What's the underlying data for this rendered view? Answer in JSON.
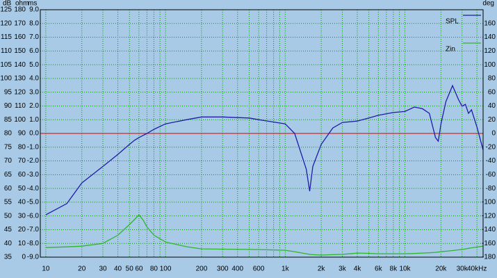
{
  "chart_data": {
    "type": "line",
    "x_log": true,
    "xlim": [
      9,
      45000
    ],
    "xticks": [
      10,
      20,
      30,
      40,
      50,
      60,
      80,
      100,
      200,
      300,
      400,
      600,
      {
        "value": 1000,
        "label": "1k"
      },
      {
        "value": 2000,
        "label": "2k"
      },
      {
        "value": 3000,
        "label": "3k"
      },
      {
        "value": 4000,
        "label": "4k"
      },
      {
        "value": 6000,
        "label": "6k"
      },
      {
        "value": 8000,
        "label": "8k"
      },
      {
        "value": 10000,
        "label": "10k"
      },
      {
        "value": 20000,
        "label": "20k"
      },
      {
        "value": 30000,
        "label": "30k"
      },
      {
        "value": 40000,
        "label": "40kHz"
      }
    ],
    "xgrid": [
      10,
      20,
      30,
      40,
      50,
      60,
      70,
      80,
      90,
      100,
      200,
      300,
      400,
      500,
      600,
      700,
      800,
      900,
      1000,
      2000,
      3000,
      4000,
      5000,
      6000,
      7000,
      8000,
      9000,
      10000,
      20000,
      30000,
      40000
    ],
    "y_label": "dB",
    "ylim": [
      35,
      125
    ],
    "yticks": [
      35,
      40,
      45,
      50,
      55,
      60,
      65,
      70,
      75,
      80,
      85,
      90,
      95,
      100,
      105,
      110,
      115,
      120,
      125
    ],
    "y2_label": "ohm",
    "y2lim": [
      0,
      180
    ],
    "y2ticks": [
      0,
      10,
      20,
      30,
      40,
      50,
      60,
      70,
      80,
      90,
      100,
      110,
      120,
      130,
      140,
      150,
      160,
      170,
      180
    ],
    "y3_label": "ms",
    "y3lim": [
      -9,
      9
    ],
    "y3ticks": [
      {
        "value": -9,
        "label": "-9.0"
      },
      {
        "value": -8,
        "label": "-8.0"
      },
      {
        "value": -7,
        "label": "-7.0"
      },
      {
        "value": -6,
        "label": "-6.0"
      },
      {
        "value": -5,
        "label": "-5.0"
      },
      {
        "value": -4,
        "label": "-4.0"
      },
      {
        "value": -3,
        "label": "-3.0"
      },
      {
        "value": -2,
        "label": "-2.0"
      },
      {
        "value": -1,
        "label": "-1.0"
      },
      {
        "value": 0,
        "label": "0.0"
      },
      {
        "value": 1,
        "label": "1.0"
      },
      {
        "value": 2,
        "label": "2.0"
      },
      {
        "value": 3,
        "label": "3.0"
      },
      {
        "value": 4,
        "label": "4.0"
      },
      {
        "value": 5,
        "label": "5.0"
      },
      {
        "value": 6,
        "label": "6.0"
      },
      {
        "value": 7,
        "label": "7.0"
      },
      {
        "value": 8,
        "label": "8.0"
      },
      {
        "value": 9,
        "label": "9.0"
      }
    ],
    "y4_label": "deg",
    "y4lim": [
      -180,
      180
    ],
    "y4ticks": [
      -180,
      -160,
      -140,
      -120,
      -100,
      -80,
      -60,
      -40,
      -20,
      0,
      20,
      40,
      60,
      80,
      100,
      120,
      140,
      160
    ],
    "reference_line": {
      "axis": "y3",
      "value": 0,
      "color": "#e00000"
    },
    "grid": true,
    "grid_color": "#00a000",
    "legend": "top-right",
    "x": [
      10,
      15,
      20,
      30,
      40,
      50,
      55,
      60,
      65,
      70,
      80,
      100,
      150,
      200,
      300,
      500,
      600,
      1000,
      1200,
      1500,
      1600,
      1700,
      2000,
      2500,
      3000,
      4000,
      5000,
      6000,
      8000,
      10000,
      12000,
      14000,
      16000,
      18000,
      19000,
      20000,
      22000,
      25000,
      28000,
      30000,
      32000,
      34000,
      36000,
      40000,
      45000
    ],
    "series": [
      {
        "name": "SPL",
        "color": "#1c1ca6",
        "axis": "y",
        "values": [
          50.4,
          54.5,
          62,
          68,
          72.4,
          76,
          77.5,
          78.5,
          79.3,
          80,
          81.5,
          83.5,
          85,
          86,
          86,
          85.6,
          85,
          83.5,
          80,
          67,
          59,
          68,
          76,
          82,
          84,
          84.5,
          85.6,
          86.6,
          87.6,
          88,
          89.6,
          89,
          87.3,
          78.5,
          77.2,
          83.5,
          91.6,
          97.4,
          92.4,
          89.9,
          90.6,
          87.3,
          88.6,
          82.3,
          74
        ]
      },
      {
        "name": "Zin",
        "color": "#2db52d",
        "axis": "y2",
        "values": [
          7,
          7.5,
          8,
          10,
          16,
          23.7,
          27.3,
          30.8,
          27,
          22,
          16,
          11,
          7.6,
          6,
          5.8,
          5.6,
          5.5,
          5,
          4,
          2.5,
          2,
          1.8,
          1.5,
          1.8,
          2,
          3,
          2.8,
          2.5,
          2.5,
          2.5,
          2.7,
          3,
          3.2,
          3.5,
          3.7,
          4,
          4.3,
          4.8,
          5.3,
          5.6,
          6,
          6.4,
          6.8,
          7.4,
          8
        ]
      }
    ]
  }
}
